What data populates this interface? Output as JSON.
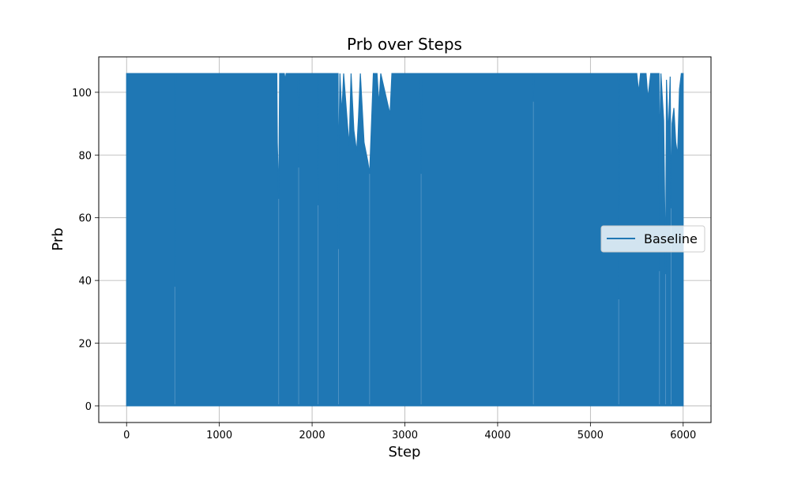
{
  "chart_data": {
    "type": "line",
    "title": "Prb over Steps",
    "xlabel": "Step",
    "ylabel": "Prb",
    "xlim": [
      -300,
      6300
    ],
    "ylim": [
      -5.3,
      111.3
    ],
    "xticks": [
      0,
      1000,
      2000,
      3000,
      4000,
      5000,
      6000
    ],
    "xtick_labels": [
      "0",
      "1000",
      "2000",
      "3000",
      "4000",
      "5000",
      "6000"
    ],
    "yticks": [
      0,
      20,
      40,
      60,
      80,
      100
    ],
    "ytick_labels": [
      "0",
      "20",
      "40",
      "60",
      "80",
      "100"
    ],
    "grid": true,
    "legend_position": "center-right",
    "series": [
      {
        "name": "Baseline",
        "color": "#1f77b4",
        "x_range": [
          0,
          6000
        ],
        "min": 0,
        "max": 106,
        "envelope_top": [
          [
            0,
            106
          ],
          [
            520,
            106
          ],
          [
            520,
            38
          ],
          [
            530,
            106
          ],
          [
            1620,
            106
          ],
          [
            1625,
            84
          ],
          [
            1640,
            66
          ],
          [
            1650,
            106
          ],
          [
            1700,
            106
          ],
          [
            1710,
            104
          ],
          [
            1720,
            106
          ],
          [
            1850,
            106
          ],
          [
            1855,
            76
          ],
          [
            1860,
            106
          ],
          [
            2060,
            106
          ],
          [
            2065,
            64
          ],
          [
            2070,
            106
          ],
          [
            2280,
            106
          ],
          [
            2285,
            50
          ],
          [
            2290,
            86
          ],
          [
            2300,
            106
          ],
          [
            2320,
            93
          ],
          [
            2340,
            106
          ],
          [
            2380,
            90
          ],
          [
            2400,
            83
          ],
          [
            2420,
            106
          ],
          [
            2450,
            88
          ],
          [
            2480,
            81
          ],
          [
            2500,
            92
          ],
          [
            2520,
            106
          ],
          [
            2560,
            84
          ],
          [
            2600,
            78
          ],
          [
            2620,
            74
          ],
          [
            2640,
            90
          ],
          [
            2660,
            106
          ],
          [
            2700,
            106
          ],
          [
            2720,
            96
          ],
          [
            2740,
            106
          ],
          [
            2840,
            93
          ],
          [
            2860,
            106
          ],
          [
            3170,
            106
          ],
          [
            3175,
            74
          ],
          [
            3180,
            106
          ],
          [
            4380,
            106
          ],
          [
            4385,
            97
          ],
          [
            4390,
            106
          ],
          [
            5300,
            106
          ],
          [
            5305,
            34
          ],
          [
            5310,
            106
          ],
          [
            5500,
            106
          ],
          [
            5520,
            100
          ],
          [
            5540,
            106
          ],
          [
            5600,
            106
          ],
          [
            5620,
            98
          ],
          [
            5650,
            106
          ],
          [
            5740,
            106
          ],
          [
            5745,
            43
          ],
          [
            5750,
            91
          ],
          [
            5760,
            106
          ],
          [
            5790,
            91
          ],
          [
            5810,
            42
          ],
          [
            5820,
            104
          ],
          [
            5840,
            86
          ],
          [
            5860,
            105
          ],
          [
            5870,
            63
          ],
          [
            5880,
            90
          ],
          [
            5900,
            95
          ],
          [
            5920,
            84
          ],
          [
            5940,
            80
          ],
          [
            5960,
            101
          ],
          [
            5980,
            106
          ],
          [
            6000,
            106
          ]
        ],
        "notable_dips": [
          {
            "x": 520,
            "y": 38
          },
          {
            "x": 1640,
            "y": 66
          },
          {
            "x": 1855,
            "y": 76
          },
          {
            "x": 2065,
            "y": 64
          },
          {
            "x": 2285,
            "y": 50
          },
          {
            "x": 2620,
            "y": 74
          },
          {
            "x": 3175,
            "y": 74
          },
          {
            "x": 4385,
            "y": 97
          },
          {
            "x": 5305,
            "y": 34
          },
          {
            "x": 5745,
            "y": 43
          },
          {
            "x": 5810,
            "y": 42
          },
          {
            "x": 5870,
            "y": 63
          }
        ]
      }
    ]
  }
}
